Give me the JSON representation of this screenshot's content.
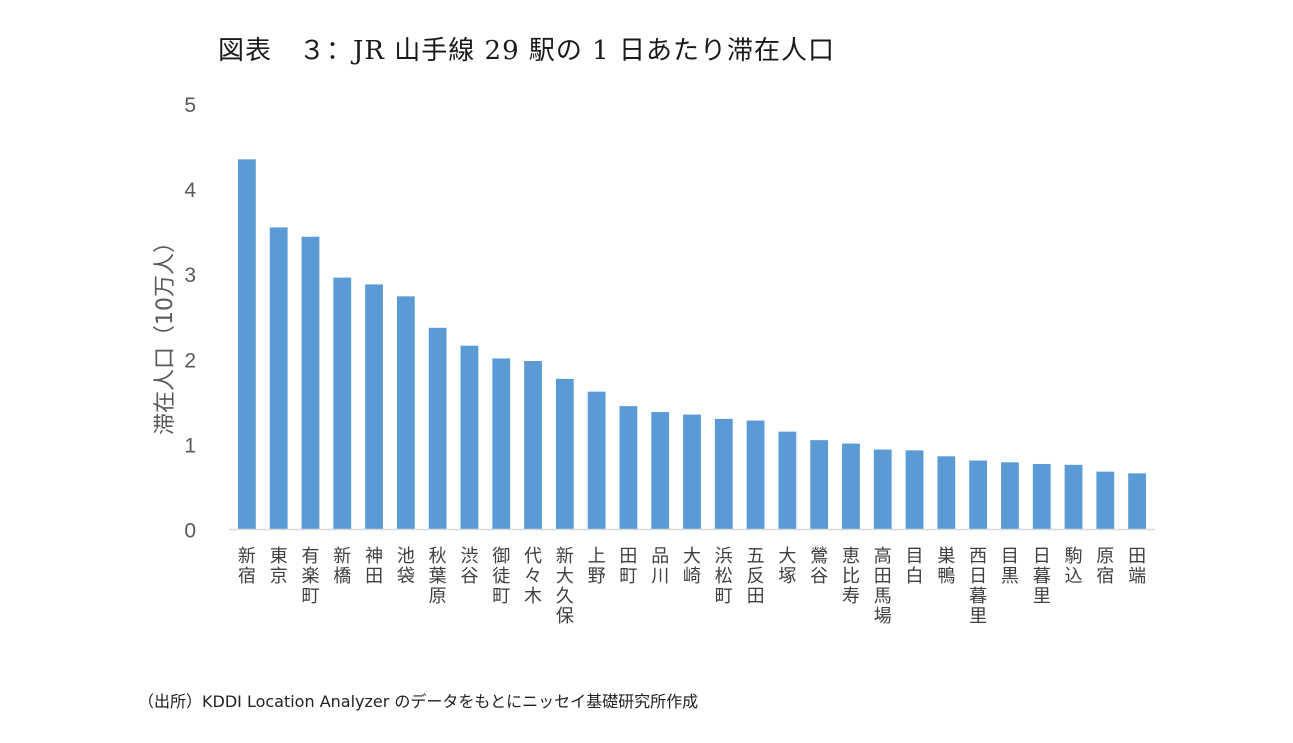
{
  "title": "図表　３：JR 山手線 29 駅の 1 日あたり滞在人口",
  "source": "（出所）KDDI Location Analyzer のデータをもとにニッセイ基礎研究所作成",
  "colors": {
    "bar": "#5b9bd5",
    "axis": "#d9d9d9",
    "text": "#595959"
  },
  "chart_data": {
    "type": "bar",
    "title": "図表　３：JR 山手線 29 駅の 1 日あたり滞在人口",
    "xlabel": "",
    "ylabel": "滞在人口（10万人）",
    "ylim": [
      0,
      5
    ],
    "yticks": [
      0,
      1,
      2,
      3,
      4,
      5
    ],
    "grid": false,
    "legend": "none",
    "categories": [
      "新宿",
      "東京",
      "有楽町",
      "新橋",
      "神田",
      "池袋",
      "秋葉原",
      "渋谷",
      "御徒町",
      "代々木",
      "新大久保",
      "上野",
      "田町",
      "品川",
      "大崎",
      "浜松町",
      "五反田",
      "大塚",
      "鶯谷",
      "恵比寿",
      "高田馬場",
      "目白",
      "巣鴨",
      "西日暮里",
      "目黒",
      "日暮里",
      "駒込",
      "原宿",
      "田端"
    ],
    "values": [
      4.35,
      3.55,
      3.44,
      2.96,
      2.88,
      2.74,
      2.37,
      2.16,
      2.01,
      1.98,
      1.77,
      1.62,
      1.45,
      1.38,
      1.35,
      1.3,
      1.28,
      1.15,
      1.05,
      1.01,
      0.94,
      0.93,
      0.86,
      0.81,
      0.79,
      0.77,
      0.76,
      0.68,
      0.66
    ]
  }
}
